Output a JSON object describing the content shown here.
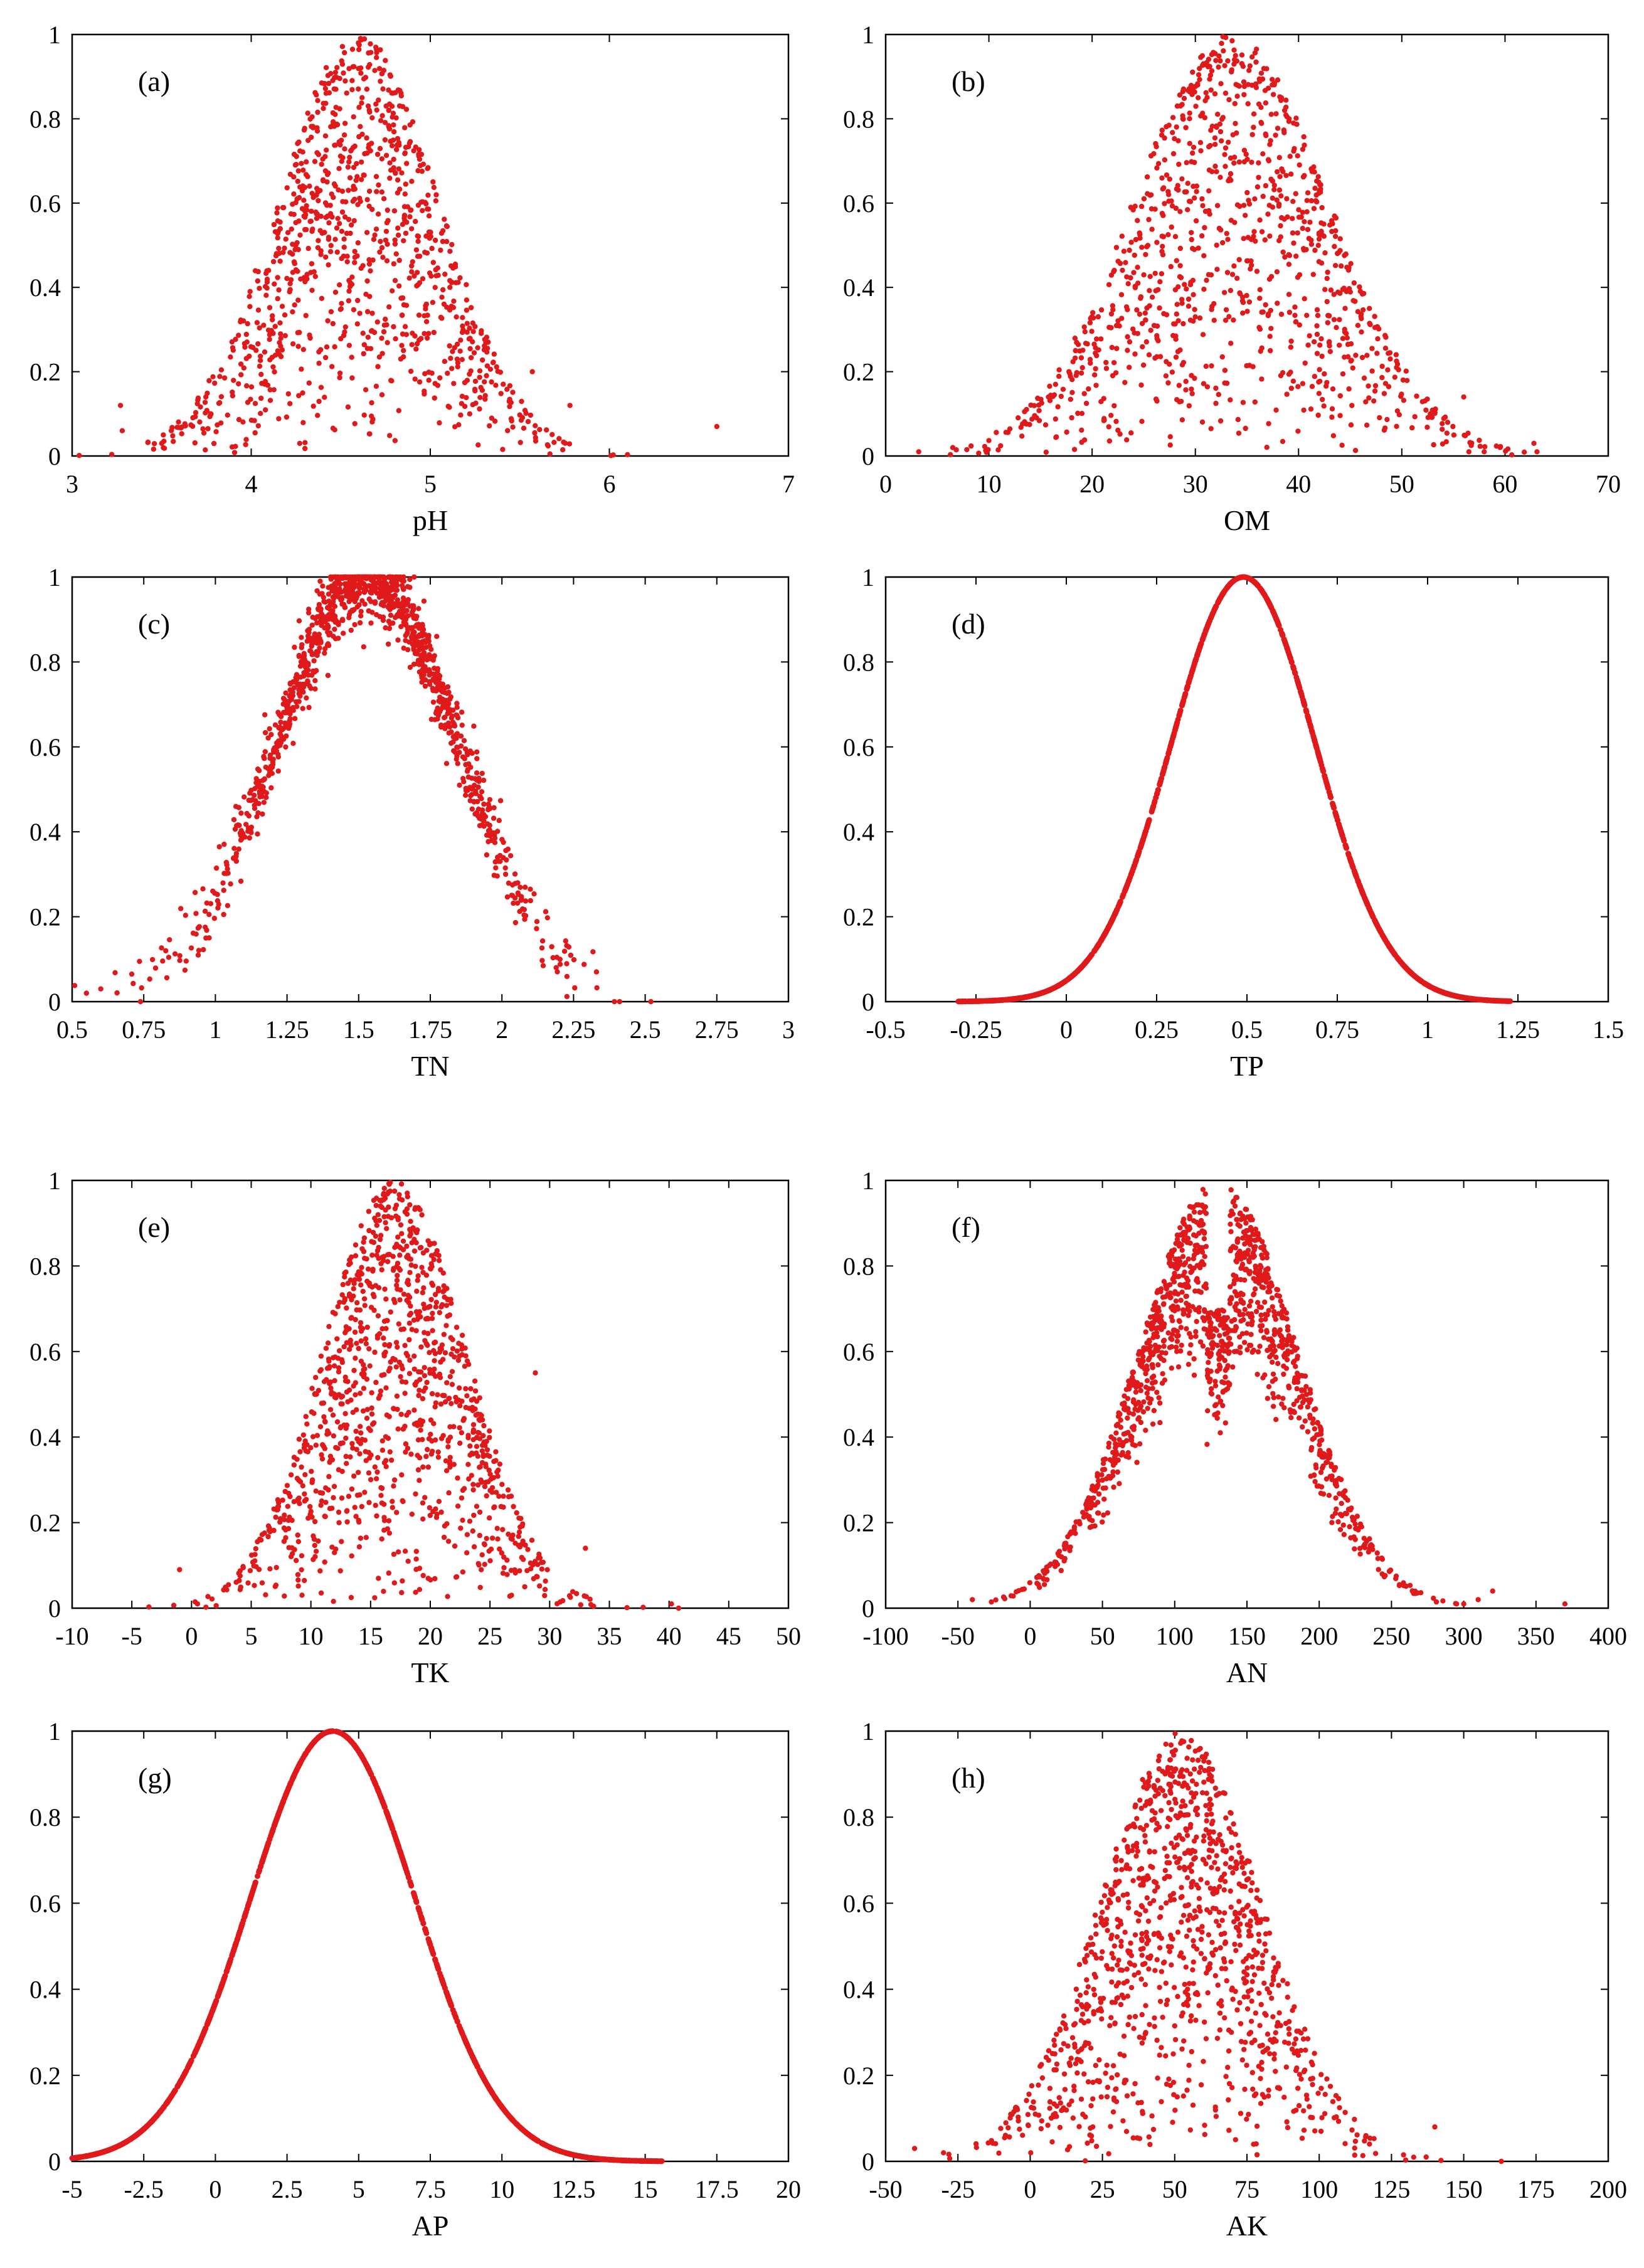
{
  "marker_color": "#e0191b",
  "chart_data": [
    {
      "type": "scatter",
      "panel": "(a)",
      "xlabel": "pH",
      "ylabel": "",
      "xlim": [
        3,
        7
      ],
      "ylim": [
        0,
        1
      ],
      "xticks": [
        "3",
        "4",
        "5",
        "6",
        "7"
      ],
      "yticks": [
        "0",
        "0.2",
        "0.4",
        "0.6",
        "0.8",
        "1"
      ],
      "distribution": {
        "mode": "noisy",
        "mean": 4.6,
        "sd": 0.45,
        "n": 1000,
        "seed": 11
      },
      "outliers": [
        [
          3.27,
          0.12
        ],
        [
          3.28,
          0.06
        ],
        [
          3.5,
          0.03
        ],
        [
          5.78,
          0.12
        ],
        [
          6.6,
          0.07
        ],
        [
          5.57,
          0.2
        ]
      ]
    },
    {
      "type": "scatter",
      "panel": "(b)",
      "xlabel": "OM",
      "ylabel": "",
      "xlim": [
        0,
        70
      ],
      "ylim": [
        0,
        1
      ],
      "xticks": [
        "0",
        "10",
        "20",
        "30",
        "40",
        "50",
        "60",
        "70"
      ],
      "yticks": [
        "0",
        "0.2",
        "0.4",
        "0.6",
        "0.8",
        "1"
      ],
      "distribution": {
        "mode": "noisy",
        "mean": 33.5,
        "sd": 9.5,
        "n": 1000,
        "seed": 23
      },
      "outliers": [
        [
          3.2,
          0.01
        ],
        [
          6.5,
          0.02
        ],
        [
          56.5,
          0.01
        ],
        [
          62.8,
          0.03
        ],
        [
          63.1,
          0.01
        ],
        [
          56.0,
          0.14
        ]
      ]
    },
    {
      "type": "scatter",
      "panel": "(c)",
      "xlabel": "TN",
      "ylabel": "",
      "xlim": [
        0.5,
        3
      ],
      "ylim": [
        0,
        1
      ],
      "xticks": [
        "0.5",
        "0.75",
        "1",
        "1.25",
        "1.5",
        "1.75",
        "2",
        "2.25",
        "2.5",
        "2.75",
        "3"
      ],
      "yticks": [
        "0",
        "0.2",
        "0.4",
        "0.6",
        "0.8",
        "1"
      ],
      "distribution": {
        "mode": "band",
        "mean": 1.53,
        "sd": 0.32,
        "n": 1200,
        "seed": 37
      },
      "outliers": [
        [
          0.55,
          0.02
        ],
        [
          0.6,
          0.03
        ],
        [
          2.52,
          0.0
        ],
        [
          2.33,
          0.07
        ]
      ]
    },
    {
      "type": "scatter",
      "panel": "(d)",
      "xlabel": "TP",
      "ylabel": "",
      "xlim": [
        -0.5,
        1.5
      ],
      "ylim": [
        0,
        1
      ],
      "xticks": [
        "-0.5",
        "-0.25",
        "0",
        "0.25",
        "0.5",
        "0.75",
        "1",
        "1.25",
        "1.5"
      ],
      "yticks": [
        "0",
        "0.2",
        "0.4",
        "0.6",
        "0.8",
        "1"
      ],
      "distribution": {
        "mode": "curve",
        "mean": 0.49,
        "sd": 0.2,
        "xmin": -0.3,
        "xmax": 1.23,
        "n": 1400,
        "seed": 41
      },
      "outliers": []
    },
    {
      "type": "scatter",
      "panel": "(e)",
      "xlabel": "TK",
      "ylabel": "",
      "xlim": [
        -10,
        50
      ],
      "ylim": [
        0,
        1
      ],
      "xticks": [
        "-10",
        "-5",
        "0",
        "5",
        "10",
        "15",
        "20",
        "25",
        "30",
        "35",
        "40",
        "45",
        "50"
      ],
      "yticks": [
        "0",
        "0.2",
        "0.4",
        "0.6",
        "0.8",
        "1"
      ],
      "distribution": {
        "mode": "noisy",
        "mean": 17.0,
        "sd": 6.0,
        "n": 1100,
        "seed": 53
      },
      "outliers": [
        [
          -1.0,
          0.09
        ],
        [
          0.5,
          0.01
        ],
        [
          40.2,
          0.01
        ],
        [
          40.8,
          0.0
        ],
        [
          33.0,
          0.14
        ],
        [
          28.8,
          0.55
        ]
      ]
    },
    {
      "type": "scatter",
      "panel": "(f)",
      "xlabel": "AN",
      "ylabel": "",
      "xlim": [
        -100,
        400
      ],
      "ylim": [
        0,
        1
      ],
      "xticks": [
        "-100",
        "-50",
        "0",
        "50",
        "100",
        "150",
        "200",
        "250",
        "300",
        "350",
        "400"
      ],
      "yticks": [
        "0",
        "0.2",
        "0.4",
        "0.6",
        "0.8",
        "1"
      ],
      "distribution": {
        "mode": "split",
        "mean": 130,
        "sd": 55,
        "n": 1200,
        "seed": 67
      },
      "outliers": [
        [
          -40,
          0.02
        ],
        [
          310,
          0.02
        ],
        [
          320,
          0.04
        ],
        [
          370,
          0.01
        ],
        [
          300,
          0.01
        ]
      ]
    },
    {
      "type": "scatter",
      "panel": "(g)",
      "xlabel": "AP",
      "ylabel": "",
      "xlim": [
        -5,
        20
      ],
      "ylim": [
        0,
        1
      ],
      "xticks": [
        "-5",
        "-2.5",
        "0",
        "2.5",
        "5",
        "7.5",
        "10",
        "12.5",
        "15",
        "17.5",
        "20"
      ],
      "yticks": [
        "0",
        "0.2",
        "0.4",
        "0.6",
        "0.8",
        "1"
      ],
      "distribution": {
        "mode": "curve",
        "mean": 4.1,
        "sd": 2.9,
        "xmin": -5,
        "xmax": 15.6,
        "n": 1500,
        "seed": 71
      },
      "outliers": []
    },
    {
      "type": "scatter",
      "panel": "(h)",
      "xlabel": "AK",
      "ylabel": "",
      "xlim": [
        -50,
        200
      ],
      "ylim": [
        0,
        1
      ],
      "xticks": [
        "-50",
        "-25",
        "0",
        "25",
        "50",
        "75",
        "100",
        "125",
        "150",
        "175",
        "200"
      ],
      "yticks": [
        "0",
        "0.2",
        "0.4",
        "0.6",
        "0.8",
        "1"
      ],
      "distribution": {
        "mode": "noisy",
        "mean": 52,
        "sd": 28,
        "n": 1100,
        "seed": 83
      },
      "outliers": [
        [
          -40,
          0.03
        ],
        [
          -30,
          0.02
        ],
        [
          140,
          0.08
        ],
        [
          163,
          0.0
        ],
        [
          137,
          0.01
        ]
      ]
    }
  ]
}
